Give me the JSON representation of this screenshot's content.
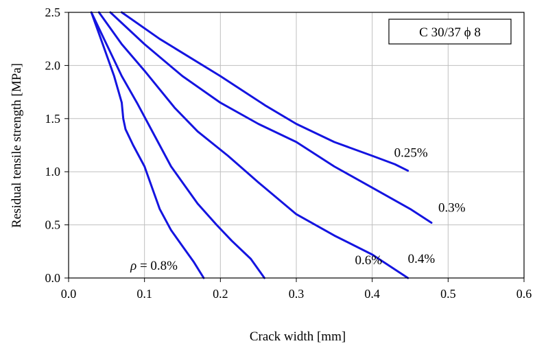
{
  "chart_data": {
    "type": "line",
    "title": "",
    "xlabel": "Crack width [mm]",
    "ylabel": "Residual tensile strength [MPa]",
    "xlim": [
      0.0,
      0.6
    ],
    "ylim": [
      0.0,
      2.5
    ],
    "x_ticks": [
      "0.0",
      "0.1",
      "0.2",
      "0.3",
      "0.4",
      "0.5",
      "0.6"
    ],
    "y_ticks": [
      "0.0",
      "0.5",
      "1.0",
      "1.5",
      "2.0",
      "2.5"
    ],
    "grid": true,
    "inset_label": "C 30/37 ϕ 8",
    "line_color": "#1414e0",
    "series": [
      {
        "label": "ρ = 0.8%",
        "points": [
          [
            0.03,
            2.5
          ],
          [
            0.045,
            2.2
          ],
          [
            0.06,
            1.9
          ],
          [
            0.07,
            1.65
          ],
          [
            0.072,
            1.5
          ],
          [
            0.075,
            1.4
          ],
          [
            0.085,
            1.25
          ],
          [
            0.1,
            1.05
          ],
          [
            0.11,
            0.85
          ],
          [
            0.12,
            0.65
          ],
          [
            0.135,
            0.45
          ],
          [
            0.15,
            0.3
          ],
          [
            0.165,
            0.15
          ],
          [
            0.178,
            0.0
          ]
        ]
      },
      {
        "label": "0.6%",
        "points": [
          [
            0.03,
            2.5
          ],
          [
            0.05,
            2.2
          ],
          [
            0.07,
            1.9
          ],
          [
            0.09,
            1.65
          ],
          [
            0.105,
            1.45
          ],
          [
            0.12,
            1.25
          ],
          [
            0.135,
            1.05
          ],
          [
            0.15,
            0.9
          ],
          [
            0.17,
            0.7
          ],
          [
            0.195,
            0.5
          ],
          [
            0.215,
            0.35
          ],
          [
            0.24,
            0.18
          ],
          [
            0.258,
            0.0
          ]
        ]
      },
      {
        "label": "0.4%",
        "points": [
          [
            0.04,
            2.5
          ],
          [
            0.07,
            2.2
          ],
          [
            0.1,
            1.95
          ],
          [
            0.14,
            1.6
          ],
          [
            0.17,
            1.38
          ],
          [
            0.21,
            1.15
          ],
          [
            0.25,
            0.9
          ],
          [
            0.3,
            0.6
          ],
          [
            0.35,
            0.4
          ],
          [
            0.4,
            0.22
          ],
          [
            0.447,
            0.0
          ]
        ]
      },
      {
        "label": "0.3%",
        "points": [
          [
            0.055,
            2.5
          ],
          [
            0.1,
            2.2
          ],
          [
            0.15,
            1.9
          ],
          [
            0.2,
            1.65
          ],
          [
            0.25,
            1.45
          ],
          [
            0.3,
            1.28
          ],
          [
            0.35,
            1.05
          ],
          [
            0.4,
            0.85
          ],
          [
            0.45,
            0.65
          ],
          [
            0.478,
            0.52
          ]
        ]
      },
      {
        "label": "0.25%",
        "points": [
          [
            0.07,
            2.5
          ],
          [
            0.12,
            2.25
          ],
          [
            0.2,
            1.9
          ],
          [
            0.26,
            1.62
          ],
          [
            0.3,
            1.45
          ],
          [
            0.35,
            1.28
          ],
          [
            0.4,
            1.15
          ],
          [
            0.43,
            1.07
          ],
          [
            0.447,
            1.01
          ]
        ]
      }
    ]
  }
}
